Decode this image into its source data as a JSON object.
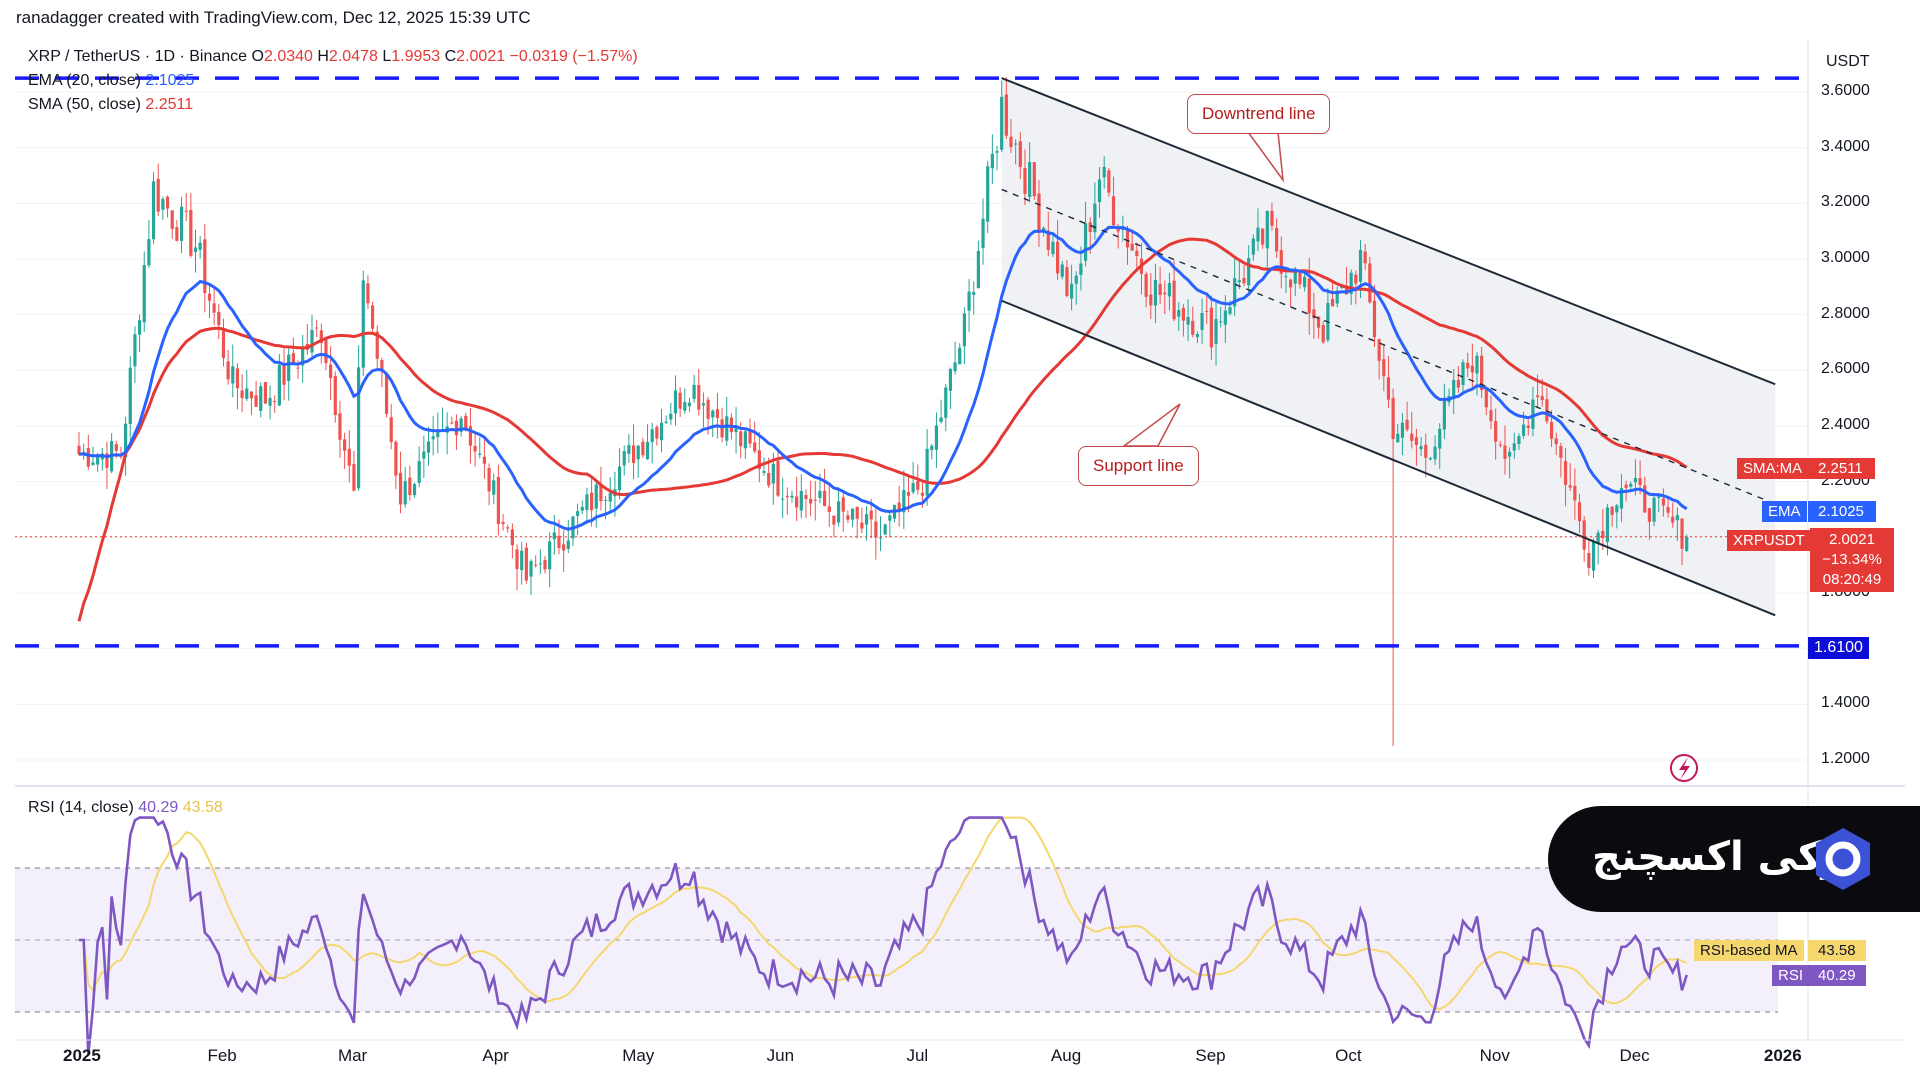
{
  "header": {
    "watermark": "ranadagger created with TradingView.com, Dec 12, 2025 15:39 UTC",
    "symbol_title": "XRP / TetherUS · 1D · Binance",
    "ohlc": {
      "o_label": "O",
      "o": "2.0340",
      "h_label": "H",
      "h": "2.0478",
      "l_label": "L",
      "l": "1.9953",
      "c_label": "C",
      "c": "2.0021",
      "change": "−0.0319 (−1.57%)"
    },
    "ema_label": "EMA (20, close)",
    "ema_value": "2.1025",
    "sma_label": "SMA (50, close)",
    "sma_value": "2.2511",
    "rsi_label": "RSI (14, close)",
    "rsi_value": "40.29",
    "rsi_ma_value": "43.58"
  },
  "annotations": {
    "downtrend": "Downtrend line",
    "support": "Support line"
  },
  "price_axis": {
    "currency": "USDT",
    "ticks": [
      "3.6000",
      "3.4000",
      "3.2000",
      "3.0000",
      "2.8000",
      "2.6000",
      "2.4000",
      "2.2000",
      "1.8000",
      "1.4000",
      "1.2000"
    ],
    "level_label": "1.6100",
    "sma_tag": "SMA:MA",
    "sma_tag_value": "2.2511",
    "ema_tag": "EMA",
    "ema_tag_value": "2.1025",
    "price_tag": "XRPUSDT",
    "price_tag_value": "2.0021",
    "price_change_pct": "−13.34%",
    "countdown": "08:20:49",
    "rsi_ma_tag": "RSI-based MA",
    "rsi_ma_tag_value": "43.58",
    "rsi_tag": "RSI",
    "rsi_tag_value": "40.29"
  },
  "time_axis": [
    "2025",
    "Feb",
    "Mar",
    "Apr",
    "May",
    "Jun",
    "Jul",
    "Aug",
    "Sep",
    "Oct",
    "Nov",
    "Dec",
    "2026"
  ],
  "colors": {
    "bull": "#26a69a",
    "bear": "#ef5350",
    "ema": "#2962ff",
    "sma": "#e53935",
    "rsi": "#7e57c2",
    "rsi_ma": "#f5d76e",
    "level": "#1a1aff",
    "channel": "#1e2a38"
  },
  "logo": {
    "text": "اوکی اکسچنج"
  },
  "chart_data": {
    "type": "candlestick",
    "interval": "1D",
    "symbol": "XRPUSDT",
    "ylim": [
      1.2,
      3.7
    ],
    "horizontal_levels": [
      3.65,
      1.61
    ],
    "anchor_points": [
      {
        "x": "2025-01-01",
        "y": 2.3
      },
      {
        "x": "2025-01-10",
        "y": 2.3
      },
      {
        "x": "2025-01-17",
        "y": 3.25
      },
      {
        "x": "2025-01-26",
        "y": 3.05
      },
      {
        "x": "2025-02-03",
        "y": 2.55
      },
      {
        "x": "2025-02-10",
        "y": 2.5
      },
      {
        "x": "2025-02-22",
        "y": 2.75
      },
      {
        "x": "2025-03-01",
        "y": 2.15
      },
      {
        "x": "2025-03-03",
        "y": 2.95
      },
      {
        "x": "2025-03-11",
        "y": 2.15
      },
      {
        "x": "2025-03-24",
        "y": 2.45
      },
      {
        "x": "2025-04-07",
        "y": 1.85
      },
      {
        "x": "2025-04-22",
        "y": 2.15
      },
      {
        "x": "2025-05-12",
        "y": 2.55
      },
      {
        "x": "2025-05-31",
        "y": 2.2
      },
      {
        "x": "2025-06-22",
        "y": 2.0
      },
      {
        "x": "2025-07-01",
        "y": 2.2
      },
      {
        "x": "2025-07-10",
        "y": 2.75
      },
      {
        "x": "2025-07-18",
        "y": 3.55
      },
      {
        "x": "2025-08-02",
        "y": 2.85
      },
      {
        "x": "2025-08-08",
        "y": 3.3
      },
      {
        "x": "2025-08-19",
        "y": 2.9
      },
      {
        "x": "2025-09-01",
        "y": 2.75
      },
      {
        "x": "2025-09-13",
        "y": 3.1
      },
      {
        "x": "2025-09-25",
        "y": 2.75
      },
      {
        "x": "2025-10-03",
        "y": 3.0
      },
      {
        "x": "2025-10-10",
        "y": 2.4
      },
      {
        "x": "2025-10-17",
        "y": 2.3
      },
      {
        "x": "2025-10-27",
        "y": 2.65
      },
      {
        "x": "2025-11-04",
        "y": 2.25
      },
      {
        "x": "2025-11-10",
        "y": 2.55
      },
      {
        "x": "2025-11-21",
        "y": 1.95
      },
      {
        "x": "2025-11-28",
        "y": 2.2
      },
      {
        "x": "2025-12-12",
        "y": 2.0021
      }
    ],
    "ema20_last": 2.1025,
    "sma50_last": 2.2511,
    "rsi": {
      "period": 14,
      "last": 40.29,
      "ma_last": 43.58,
      "levels": [
        70,
        50,
        30
      ]
    },
    "channel": {
      "upper": [
        {
          "x": "2025-07-18",
          "y": 3.65
        },
        {
          "x": "2025-12-31",
          "y": 2.55
        }
      ],
      "middle": [
        {
          "x": "2025-07-18",
          "y": 3.25
        },
        {
          "x": "2025-12-31",
          "y": 2.12
        }
      ],
      "lower": [
        {
          "x": "2025-07-18",
          "y": 2.85
        },
        {
          "x": "2025-12-31",
          "y": 1.72
        }
      ]
    }
  }
}
